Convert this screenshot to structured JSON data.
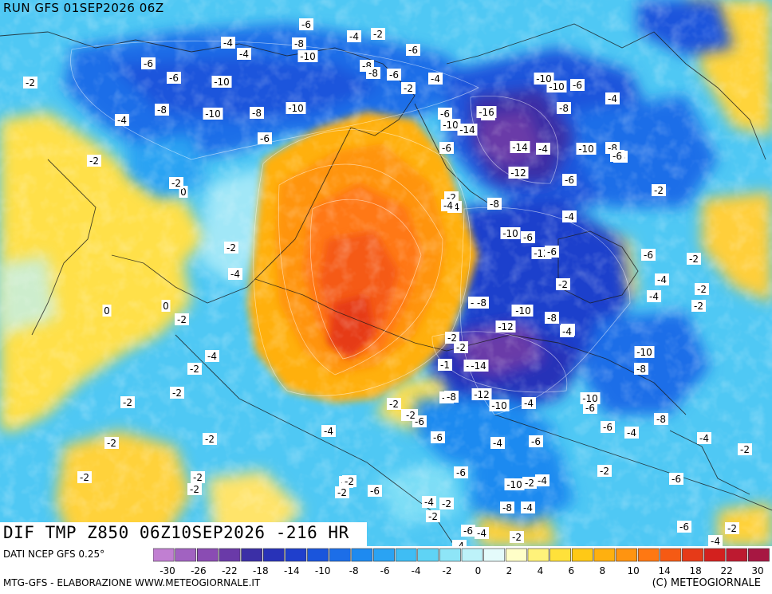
{
  "header": {
    "run_label": "RUN GFS 01SEP2026 06Z"
  },
  "panel": {
    "title": "DIF TMP Z850 06Z10SEP2026 -216 HR"
  },
  "footer": {
    "data_source": "DATI NCEP GFS 0.25°",
    "credit_left": "MTG-GFS - ELABORAZIONE WWW.METEOGIORNALE.IT",
    "credit_right": "(C) METEOGIORNALE"
  },
  "legend": {
    "colors": [
      "#c17fd2",
      "#a162c1",
      "#8a4cb3",
      "#6a3aa8",
      "#3b2fa6",
      "#2832b8",
      "#1f3fcc",
      "#1a55dc",
      "#1c6ee8",
      "#1e8af0",
      "#2aa3f3",
      "#3fbdf4",
      "#5fd3f5",
      "#8ee5f7",
      "#bdf2f9",
      "#e4fbfb",
      "#fffec8",
      "#fff27a",
      "#ffe13a",
      "#ffc916",
      "#ffb00f",
      "#ff9410",
      "#ff7812",
      "#f55a14",
      "#e63a18",
      "#d3201e",
      "#bd1a30",
      "#a71742"
    ],
    "tick_labels": [
      "-30",
      "-26",
      "-22",
      "-18",
      "-14",
      "-10",
      "-8",
      "-6",
      "-4",
      "-2",
      "0",
      "2",
      "4",
      "6",
      "8",
      "10",
      "14",
      "18",
      "22",
      "30"
    ]
  },
  "map_labels": [
    {
      "t": "-6"
    },
    {
      "t": "-4"
    },
    {
      "t": "-2"
    },
    {
      "t": "-8"
    },
    {
      "t": "-4"
    },
    {
      "t": "-10"
    },
    {
      "t": "-6"
    },
    {
      "t": "-8"
    },
    {
      "t": "-6"
    },
    {
      "t": "-10"
    },
    {
      "t": "-4"
    },
    {
      "t": "-2"
    },
    {
      "t": "-4"
    },
    {
      "t": "-10"
    },
    {
      "t": "-6"
    },
    {
      "t": "-8"
    },
    {
      "t": "-10"
    },
    {
      "t": "-6"
    },
    {
      "t": "-2"
    },
    {
      "t": "-4"
    },
    {
      "t": "-6"
    },
    {
      "t": "-8"
    },
    {
      "t": "-10"
    },
    {
      "t": "-8"
    },
    {
      "t": "-10"
    },
    {
      "t": "-8"
    },
    {
      "t": "-4"
    },
    {
      "t": "-6"
    },
    {
      "t": "-6"
    },
    {
      "t": "-10"
    },
    {
      "t": "-8"
    },
    {
      "t": "-6"
    },
    {
      "t": "-4"
    },
    {
      "t": "-6"
    },
    {
      "t": "-10"
    },
    {
      "t": "-16"
    },
    {
      "t": "-14"
    },
    {
      "t": "-12"
    },
    {
      "t": "-14"
    },
    {
      "t": "-8"
    },
    {
      "t": "-10"
    },
    {
      "t": "-12"
    },
    {
      "t": "-6"
    },
    {
      "t": "-8"
    },
    {
      "t": "-2"
    },
    {
      "t": "-4"
    },
    {
      "t": "-2"
    },
    {
      "t": "-8"
    },
    {
      "t": "-10"
    },
    {
      "t": "-6"
    },
    {
      "t": "-4"
    },
    {
      "t": "-2"
    },
    {
      "t": "-6"
    },
    {
      "t": "-8"
    },
    {
      "t": "-10"
    },
    {
      "t": "-12"
    },
    {
      "t": "-14"
    },
    {
      "t": "-8"
    },
    {
      "t": "-2"
    },
    {
      "t": "-1"
    },
    {
      "t": "-14"
    },
    {
      "t": "-12"
    },
    {
      "t": "-10"
    },
    {
      "t": "-8"
    },
    {
      "t": "-4"
    },
    {
      "t": "-6"
    },
    {
      "t": "-10"
    },
    {
      "t": "-2"
    },
    {
      "t": "-4"
    },
    {
      "t": "-6"
    },
    {
      "t": "-4"
    },
    {
      "t": "-2"
    },
    {
      "t": "0"
    },
    {
      "t": "-2"
    },
    {
      "t": "-2"
    },
    {
      "t": "-4"
    },
    {
      "t": "-2"
    },
    {
      "t": "0"
    },
    {
      "t": "-2"
    },
    {
      "t": "0"
    },
    {
      "t": "-2"
    },
    {
      "t": "-2"
    },
    {
      "t": "-2"
    },
    {
      "t": "-2"
    },
    {
      "t": "-2"
    },
    {
      "t": "-2"
    },
    {
      "t": "-2"
    },
    {
      "t": "-2"
    },
    {
      "t": "-4"
    },
    {
      "t": "-6"
    },
    {
      "t": "-6"
    },
    {
      "t": "-4"
    },
    {
      "t": "-6"
    },
    {
      "t": "-2"
    },
    {
      "t": "-6"
    },
    {
      "t": "-8"
    },
    {
      "t": "-4"
    },
    {
      "t": "-6"
    },
    {
      "t": "-2"
    },
    {
      "t": "-4"
    },
    {
      "t": "-6"
    },
    {
      "t": "-4"
    },
    {
      "t": "-2"
    },
    {
      "t": "-2"
    },
    {
      "t": "-4"
    },
    {
      "t": "-2"
    },
    {
      "t": "-4"
    },
    {
      "t": "-6"
    },
    {
      "t": "-4"
    },
    {
      "t": "-2"
    },
    {
      "t": "-2"
    },
    {
      "t": "-6"
    },
    {
      "t": "-4"
    },
    {
      "t": "-2"
    },
    {
      "t": "-6"
    },
    {
      "t": "-4"
    },
    {
      "t": "-2"
    },
    {
      "t": "-2"
    },
    {
      "t": "-4"
    },
    {
      "t": "-6"
    },
    {
      "t": "-8"
    },
    {
      "t": "-10"
    },
    {
      "t": "-8"
    },
    {
      "t": "-6"
    },
    {
      "t": "-4"
    },
    {
      "t": "-2"
    },
    {
      "t": "-4"
    },
    {
      "t": "-8"
    },
    {
      "t": "-10"
    },
    {
      "t": "-6"
    },
    {
      "t": "-4"
    },
    {
      "t": "-2"
    },
    {
      "t": "-2"
    },
    {
      "t": "-2"
    },
    {
      "t": "-4"
    }
  ]
}
